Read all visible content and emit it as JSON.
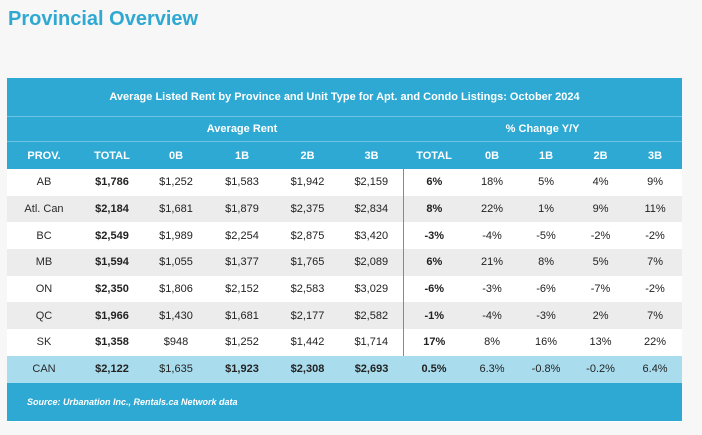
{
  "title": "Provincial Overview",
  "caption": "Average Listed Rent by Province and Unit Type for Apt. and Condo Listings: October 2024",
  "group_headers": {
    "rent": "Average Rent",
    "change": "% Change Y/Y"
  },
  "columns": [
    "PROV.",
    "TOTAL",
    "0B",
    "1B",
    "2B",
    "3B",
    "TOTAL",
    "0B",
    "1B",
    "2B",
    "3B"
  ],
  "rows": [
    [
      "AB",
      "$1,786",
      "$1,252",
      "$1,583",
      "$1,942",
      "$2,159",
      "6%",
      "18%",
      "5%",
      "4%",
      "9%"
    ],
    [
      "Atl. Can",
      "$2,184",
      "$1,681",
      "$1,879",
      "$2,375",
      "$2,834",
      "8%",
      "22%",
      "1%",
      "9%",
      "11%"
    ],
    [
      "BC",
      "$2,549",
      "$1,989",
      "$2,254",
      "$2,875",
      "$3,420",
      "-3%",
      "-4%",
      "-5%",
      "-2%",
      "-2%"
    ],
    [
      "MB",
      "$1,594",
      "$1,055",
      "$1,377",
      "$1,765",
      "$2,089",
      "6%",
      "21%",
      "8%",
      "5%",
      "7%"
    ],
    [
      "ON",
      "$2,350",
      "$1,806",
      "$2,152",
      "$2,583",
      "$3,029",
      "-6%",
      "-3%",
      "-6%",
      "-7%",
      "-2%"
    ],
    [
      "QC",
      "$1,966",
      "$1,430",
      "$1,681",
      "$2,177",
      "$2,582",
      "-1%",
      "-4%",
      "-3%",
      "2%",
      "7%"
    ],
    [
      "SK",
      "$1,358",
      "$948",
      "$1,252",
      "$1,442",
      "$1,714",
      "17%",
      "8%",
      "16%",
      "13%",
      "22%"
    ],
    [
      "CAN",
      "$2,122",
      "$1,635",
      "$1,923",
      "$2,308",
      "$2,693",
      "0.5%",
      "6.3%",
      "-0.8%",
      "-0.2%",
      "6.4%"
    ]
  ],
  "source": "Source: Urbanation Inc., Rentals.ca Network data"
}
